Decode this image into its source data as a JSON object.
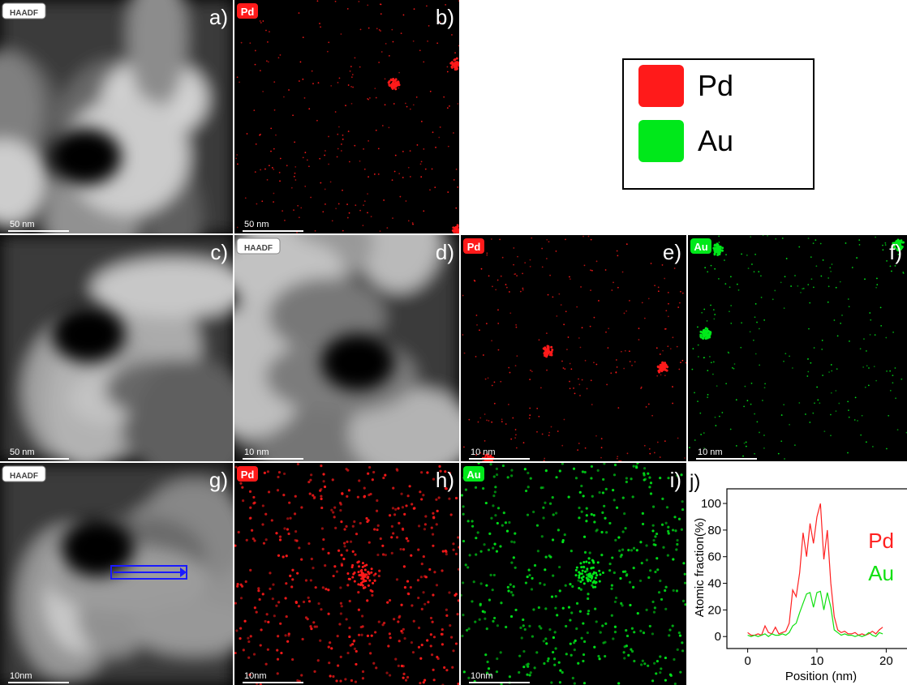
{
  "panels": [
    {
      "label": "a)",
      "tag": "HAADF",
      "scale": "50 nm"
    },
    {
      "label": "b)",
      "tag": "Pd",
      "scale": "50 nm"
    },
    {
      "label": "c)",
      "scale": "50 nm"
    },
    {
      "label": "d)",
      "tag": "HAADF",
      "scale": "10 nm"
    },
    {
      "label": "e)",
      "tag": "Pd",
      "scale": "10 nm"
    },
    {
      "label": "f)",
      "tag": "Au",
      "scale": "10 nm"
    },
    {
      "label": "g)",
      "tag": "HAADF",
      "scale": "10nm"
    },
    {
      "label": "h)",
      "tag": "Pd",
      "scale": "10nm"
    },
    {
      "label": "i)",
      "tag": "Au",
      "scale": "10nm"
    }
  ],
  "legend": [
    {
      "name": "Pd",
      "color": "#ff1a1a"
    },
    {
      "name": "Au",
      "color": "#00e81a"
    }
  ],
  "chart_data": {
    "type": "line",
    "label": "j)",
    "x_label": "Position (nm)",
    "y_label": "Atomic fraction(%)",
    "x": [
      0,
      0.5,
      1,
      1.5,
      2,
      2.5,
      3,
      3.5,
      4,
      4.5,
      5,
      5.5,
      6,
      6.5,
      7,
      7.5,
      8,
      8.5,
      9,
      9.5,
      10,
      10.5,
      11,
      11.5,
      12,
      12.5,
      13,
      13.5,
      14,
      14.5,
      15,
      15.5,
      16,
      16.5,
      17,
      17.5,
      18,
      18.5,
      19,
      19.5
    ],
    "series": [
      {
        "name": "Pd",
        "color": "#ff2020",
        "values": [
          3,
          1,
          1,
          2,
          1,
          8,
          3,
          2,
          7,
          2,
          3,
          4,
          10,
          35,
          30,
          48,
          78,
          60,
          85,
          70,
          90,
          100,
          58,
          80,
          40,
          15,
          5,
          3,
          4,
          2,
          2,
          3,
          1,
          2,
          1,
          2,
          4,
          2,
          5,
          7
        ]
      },
      {
        "name": "Au",
        "color": "#10e010",
        "values": [
          1,
          0,
          1,
          0,
          1,
          2,
          0,
          2,
          1,
          1,
          2,
          1,
          3,
          8,
          10,
          18,
          25,
          32,
          33,
          22,
          33,
          34,
          20,
          33,
          22,
          5,
          3,
          1,
          2,
          1,
          1,
          0,
          1,
          0,
          1,
          3,
          1,
          0,
          3,
          2
        ]
      }
    ],
    "xlim": [
      -3,
      23
    ],
    "ylim": [
      -9,
      111
    ],
    "xticks": [
      0,
      10,
      20
    ],
    "yticks": [
      0,
      20,
      40,
      60,
      80,
      100
    ]
  }
}
